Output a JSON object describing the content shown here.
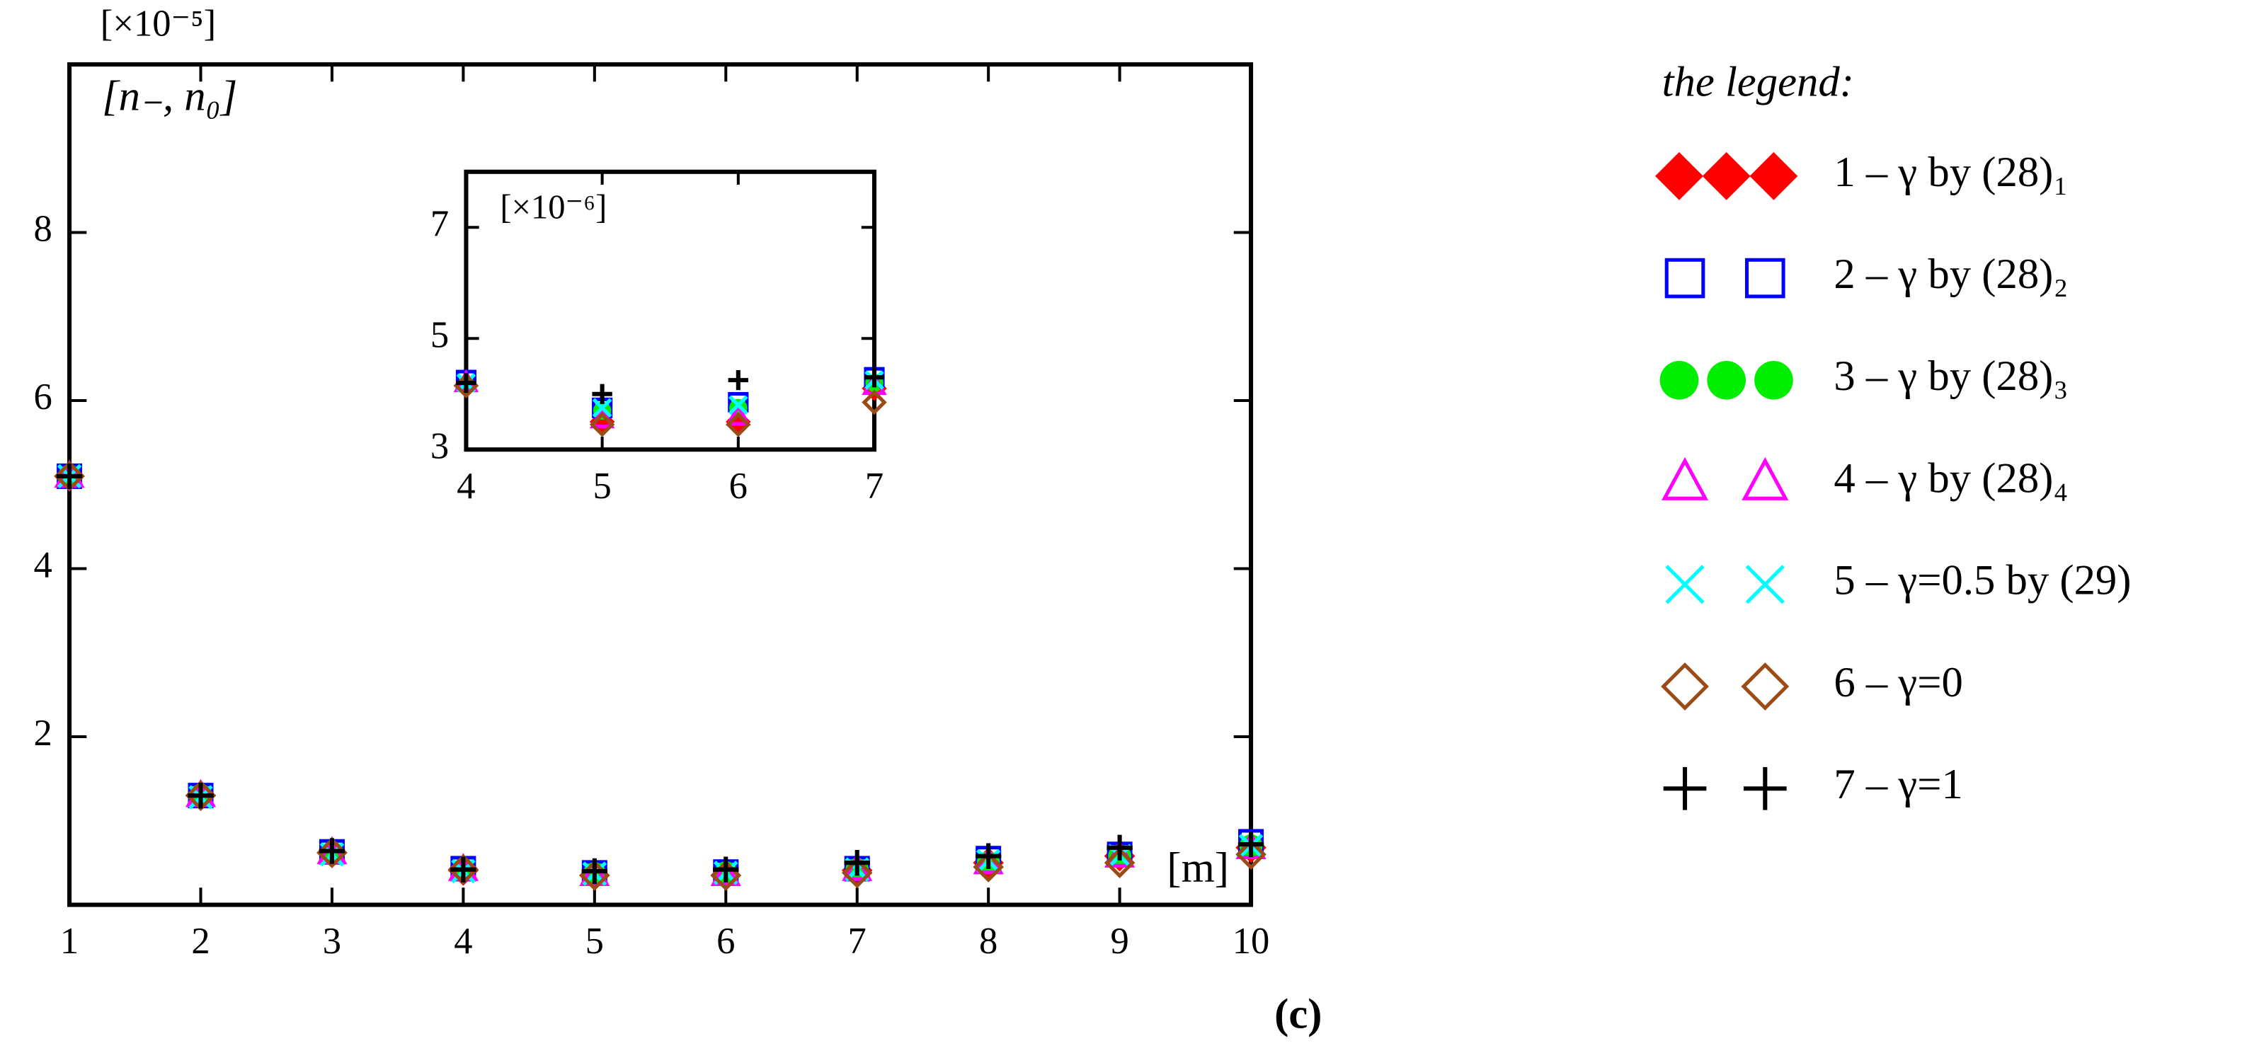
{
  "chart_data": [
    {
      "type": "scatter",
      "y_unit_label": "[×10⁻⁵]",
      "ylabel": "[n₋, n₀]",
      "xlabel": "[m]",
      "caption": "(c)",
      "legend_title": "the legend:",
      "x": [
        1,
        2,
        3,
        4,
        5,
        6,
        7,
        8,
        9,
        10
      ],
      "xlim": [
        1,
        10
      ],
      "xticks": [
        1,
        2,
        3,
        4,
        5,
        6,
        7,
        8,
        9,
        10
      ],
      "ylim": [
        0,
        10
      ],
      "yticks": [
        2,
        4,
        6,
        8
      ],
      "series": [
        {
          "name": "1 – γ by (28)₁",
          "color": "#ff0000",
          "marker": "diamond-filled",
          "values": [
            5.1,
            1.3,
            0.62,
            0.41,
            0.35,
            0.35,
            0.41,
            0.5,
            0.58,
            0.68
          ]
        },
        {
          "name": "2 – γ by (28)₂",
          "color": "#0000ff",
          "marker": "square-open",
          "values": [
            5.1,
            1.3,
            0.63,
            0.43,
            0.38,
            0.39,
            0.43,
            0.55,
            0.6,
            0.75
          ]
        },
        {
          "name": "3 – γ by (28)₃",
          "color": "#00ee00",
          "marker": "circle-filled",
          "values": [
            5.1,
            1.3,
            0.62,
            0.42,
            0.37,
            0.38,
            0.42,
            0.5,
            0.58,
            0.7
          ]
        },
        {
          "name": "4 – γ by (28)₄",
          "color": "#ff00ff",
          "marker": "triangle-open",
          "values": [
            5.1,
            1.3,
            0.62,
            0.42,
            0.36,
            0.36,
            0.42,
            0.5,
            0.58,
            0.68
          ]
        },
        {
          "name": "5 – γ=0.5 by (29)",
          "color": "#00ffff",
          "marker": "x",
          "values": [
            5.1,
            1.28,
            0.6,
            0.4,
            0.37,
            0.38,
            0.42,
            0.52,
            0.58,
            0.7
          ]
        },
        {
          "name": "6 – γ=0",
          "color": "#9a4b16",
          "marker": "diamond-open",
          "values": [
            5.1,
            1.3,
            0.62,
            0.42,
            0.35,
            0.35,
            0.38,
            0.45,
            0.5,
            0.6
          ]
        },
        {
          "name": "7 – γ=1",
          "color": "#000000",
          "marker": "plus",
          "values": [
            5.1,
            1.3,
            0.64,
            0.42,
            0.4,
            0.42,
            0.5,
            0.58,
            0.68,
            0.72
          ]
        }
      ]
    },
    {
      "type": "scatter",
      "y_unit_label": "[×10⁻⁶]",
      "x": [
        4,
        5,
        6,
        7
      ],
      "xlim": [
        4,
        7
      ],
      "xticks": [
        4,
        5,
        6,
        7
      ],
      "ylim": [
        3,
        8
      ],
      "yticks": [
        3,
        5,
        7
      ],
      "series": [
        {
          "color": "#ff0000",
          "marker": "diamond-filled",
          "values": [
            4.15,
            3.5,
            3.5,
            4.1
          ]
        },
        {
          "color": "#0000ff",
          "marker": "square-open",
          "values": [
            4.25,
            3.75,
            3.85,
            4.3
          ]
        },
        {
          "color": "#00ee00",
          "marker": "circle-filled",
          "values": [
            4.15,
            3.7,
            3.75,
            4.2
          ]
        },
        {
          "color": "#ff00ff",
          "marker": "triangle-open",
          "values": [
            4.2,
            3.55,
            3.6,
            4.15
          ]
        },
        {
          "color": "#00ffff",
          "marker": "x",
          "values": [
            4.2,
            3.75,
            3.8,
            4.25
          ]
        },
        {
          "color": "#9a4b16",
          "marker": "diamond-open",
          "values": [
            4.15,
            3.45,
            3.45,
            3.85
          ]
        },
        {
          "color": "#000000",
          "marker": "plus",
          "values": [
            4.2,
            4.0,
            4.25,
            4.3
          ]
        }
      ]
    }
  ]
}
